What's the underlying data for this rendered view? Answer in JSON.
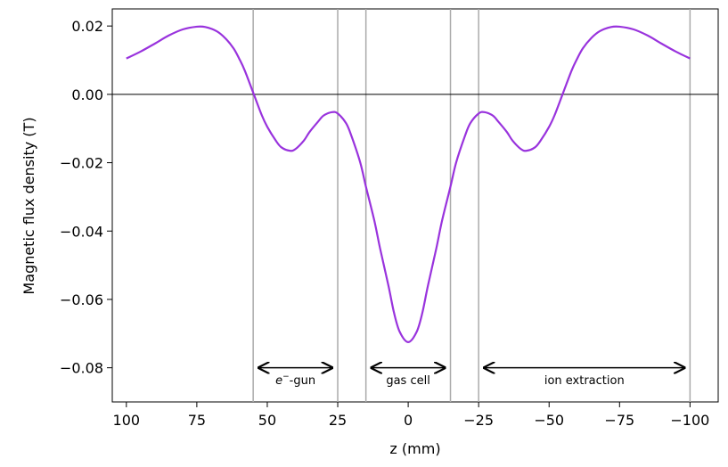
{
  "chart_data": {
    "type": "line",
    "xlabel": "z (mm)",
    "ylabel": "Magnetic flux density (T)",
    "xlim": [
      105,
      -110
    ],
    "ylim": [
      -0.09,
      0.025
    ],
    "x_reversed": true,
    "x_ticks": [
      100,
      75,
      50,
      25,
      0,
      -25,
      -50,
      -75,
      -100
    ],
    "x_tick_labels": [
      "100",
      "75",
      "50",
      "25",
      "0",
      "−25",
      "−50",
      "−75",
      "−100"
    ],
    "y_ticks": [
      0.02,
      0.0,
      -0.02,
      -0.04,
      -0.06,
      -0.08
    ],
    "y_tick_labels": [
      "0.02",
      "0.00",
      "−0.02",
      "−0.04",
      "−0.06",
      "−0.08"
    ],
    "zero_line": true,
    "grid": false,
    "colors": {
      "curve": "#9933dd",
      "vlines": "#aaaaaa",
      "zero_line": "#000000"
    },
    "series": [
      {
        "x": [
          100,
          95,
          90,
          85,
          80,
          75,
          72,
          68,
          65,
          62,
          60,
          58,
          55,
          52,
          50,
          47,
          45,
          42,
          40,
          37,
          35,
          32,
          30,
          27,
          25,
          22,
          20,
          17,
          15,
          12,
          10,
          7,
          5,
          3,
          0,
          -3,
          -5,
          -7,
          -10,
          -12,
          -15,
          -17,
          -20,
          -22,
          -25,
          -27,
          -30,
          -32,
          -35,
          -37,
          -40,
          -42,
          -45,
          -47,
          -50,
          -52,
          -55,
          -58,
          -60,
          -62,
          -65,
          -68,
          -72,
          -75,
          -80,
          -85,
          -90,
          -95,
          -100
        ],
        "y": [
          0.0105,
          0.0125,
          0.0148,
          0.0172,
          0.019,
          0.0198,
          0.0197,
          0.0185,
          0.0165,
          0.0135,
          0.0105,
          0.007,
          0.0005,
          -0.006,
          -0.0095,
          -0.0135,
          -0.0155,
          -0.0165,
          -0.016,
          -0.0135,
          -0.011,
          -0.008,
          -0.0062,
          -0.0052,
          -0.0056,
          -0.0085,
          -0.0125,
          -0.02,
          -0.027,
          -0.037,
          -0.045,
          -0.056,
          -0.064,
          -0.0695,
          -0.0725,
          -0.0695,
          -0.064,
          -0.056,
          -0.045,
          -0.037,
          -0.027,
          -0.02,
          -0.0125,
          -0.0085,
          -0.0056,
          -0.0052,
          -0.0062,
          -0.008,
          -0.011,
          -0.0135,
          -0.016,
          -0.0165,
          -0.0155,
          -0.0135,
          -0.0095,
          -0.006,
          0.0005,
          0.007,
          0.0105,
          0.0135,
          0.0165,
          0.0185,
          0.0197,
          0.0198,
          0.019,
          0.0172,
          0.0148,
          0.0125,
          0.0105
        ]
      }
    ],
    "vertical_lines": [
      55,
      25,
      15,
      -15,
      -25,
      -100
    ],
    "regions": [
      {
        "label_prefix": "e",
        "label_sup": "−",
        "label_suffix": "-gun",
        "from": 53,
        "to": 27,
        "y": -0.08,
        "label_y": -0.0835
      },
      {
        "label": "gas cell",
        "from": 13,
        "to": -13,
        "y": -0.08,
        "label_y": -0.0835
      },
      {
        "label": "ion extraction",
        "from": -27,
        "to": -98,
        "y": -0.08,
        "label_y": -0.0835
      }
    ]
  }
}
